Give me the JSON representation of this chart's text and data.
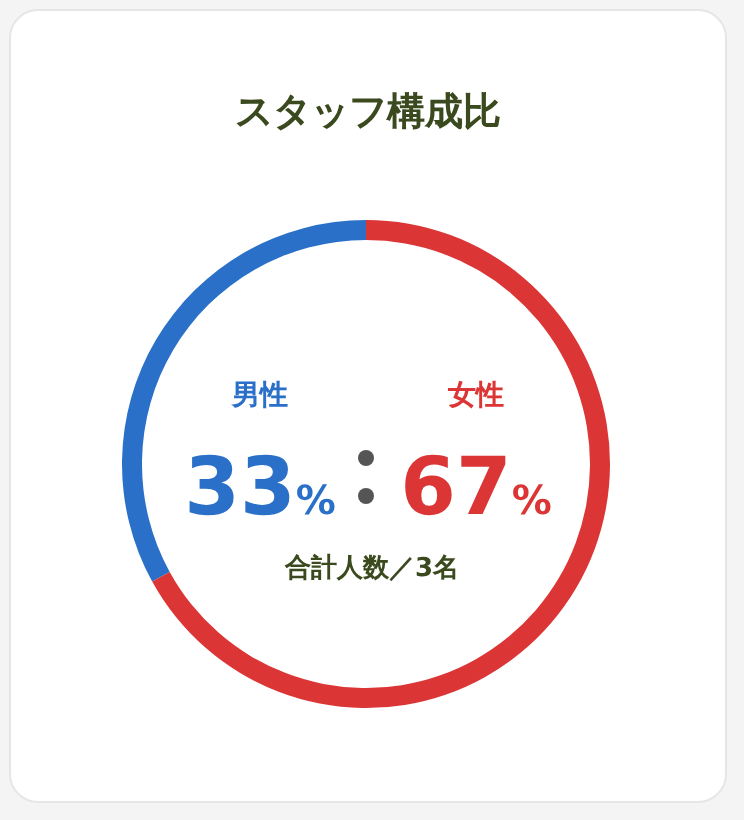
{
  "chart_data": {
    "type": "donut",
    "title": "スタッフ構成比",
    "categories": [
      "男性",
      "女性"
    ],
    "values": [
      33,
      67
    ],
    "colors": [
      "#2a70c8",
      "#dc3535"
    ],
    "value_labels": [
      "33%",
      "67%"
    ],
    "annotations": [
      "合計人数／3名"
    ]
  }
}
